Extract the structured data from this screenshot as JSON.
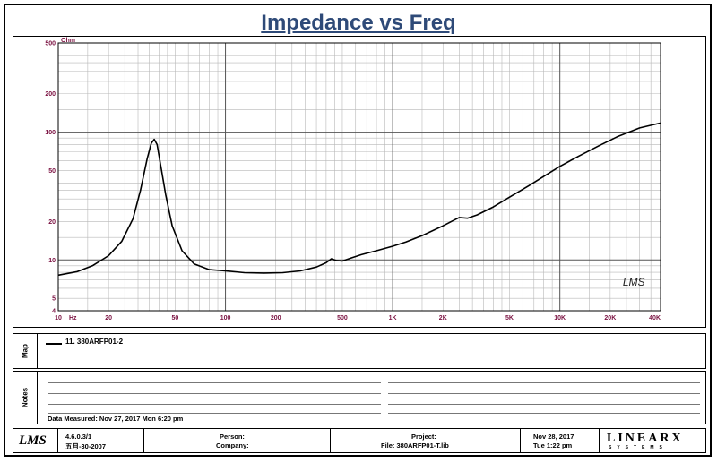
{
  "chart_data": {
    "type": "line",
    "title": "Impedance vs Freq",
    "ylabel": "Ohm",
    "xlabel": "Hz",
    "x_scale": "log",
    "y_scale": "log",
    "xlim": [
      10,
      40000
    ],
    "ylim": [
      4,
      500
    ],
    "grid": true,
    "x_ticks": [
      {
        "v": 10,
        "label": "10"
      },
      {
        "v": 20,
        "label": "20"
      },
      {
        "v": 50,
        "label": "50"
      },
      {
        "v": 100,
        "label": "100"
      },
      {
        "v": 200,
        "label": "200"
      },
      {
        "v": 500,
        "label": "500"
      },
      {
        "v": 1000,
        "label": "1K"
      },
      {
        "v": 2000,
        "label": "2K"
      },
      {
        "v": 5000,
        "label": "5K"
      },
      {
        "v": 10000,
        "label": "10K"
      },
      {
        "v": 20000,
        "label": "20K"
      },
      {
        "v": 40000,
        "label": "40K"
      }
    ],
    "y_ticks": [
      {
        "v": 5,
        "label": "5"
      },
      {
        "v": 10,
        "label": "10"
      },
      {
        "v": 20,
        "label": "20"
      },
      {
        "v": 50,
        "label": "50"
      },
      {
        "v": 100,
        "label": "100"
      },
      {
        "v": 200,
        "label": "200"
      },
      {
        "v": 500,
        "label": "500"
      }
    ],
    "y_bottom_label": "4",
    "x_unit_label": "Hz",
    "y_unit_label": "Ohm",
    "watermark": "LMS",
    "series": [
      {
        "name": "11. 380ARFP01-2",
        "x": [
          10,
          13,
          16,
          20,
          24,
          28,
          31,
          34,
          36,
          37.5,
          39,
          41,
          44,
          48,
          55,
          65,
          80,
          100,
          130,
          170,
          220,
          280,
          350,
          400,
          430,
          460,
          500,
          560,
          650,
          800,
          1000,
          1200,
          1500,
          2000,
          2500,
          2800,
          3200,
          4000,
          5000,
          6500,
          8000,
          10000,
          13000,
          17000,
          22000,
          30000,
          40000
        ],
        "y": [
          7.6,
          8.1,
          9.0,
          10.8,
          14,
          21,
          35,
          62,
          82,
          88,
          80,
          55,
          32,
          18.5,
          11.8,
          9.3,
          8.4,
          8.2,
          7.95,
          7.9,
          7.95,
          8.2,
          8.8,
          9.5,
          10.2,
          9.9,
          9.8,
          10.3,
          11.0,
          11.8,
          12.8,
          13.8,
          15.5,
          18.5,
          21.5,
          21.2,
          22.5,
          26,
          31,
          38,
          45,
          54,
          65,
          78,
          92,
          108,
          118
        ]
      }
    ]
  },
  "legend": {
    "tab_label": "Map",
    "entry": "11. 380ARFP01-2"
  },
  "notes": {
    "tab_label": "Notes",
    "measured": "Data Measured: Nov 27, 2017  Mon  6:20 pm"
  },
  "footer": {
    "logo": "LMS",
    "version": "4.6.0.3/1",
    "version_date": "五月-30-2007",
    "person_label": "Person:",
    "company_label": "Company:",
    "project_label": "Project:",
    "file_label": "File: 380ARFP01-T.lib",
    "date": "Nov 28, 2017",
    "time": "Tue  1:22 pm",
    "brand": "LINEARX",
    "brand_sub": "SYSTEMS"
  }
}
